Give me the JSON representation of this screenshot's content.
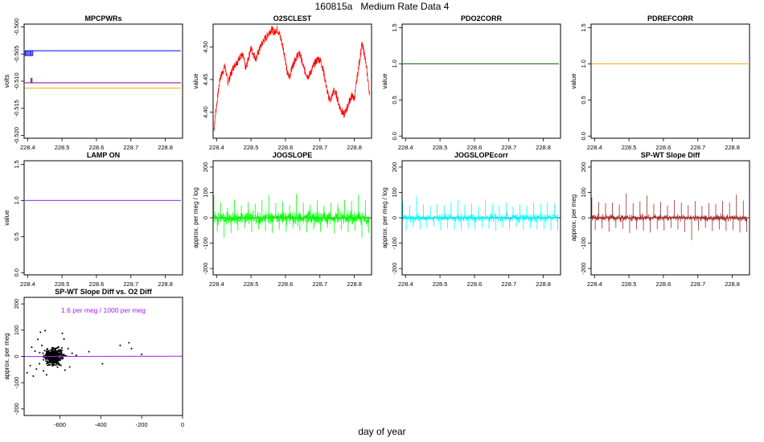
{
  "page": {
    "title": "160815a   Medium Rate Data 4",
    "xlabel": "day of year"
  },
  "chart_data": [
    {
      "id": "mpcpwrs",
      "type": "line",
      "title": "MPCPWRs",
      "xlabel": "",
      "ylabel": "volts",
      "xlim": [
        228.39,
        228.85
      ],
      "ylim": [
        -0.5205,
        -0.4995
      ],
      "xticks": [
        228.4,
        228.5,
        228.6,
        228.7,
        228.8
      ],
      "xtick_labels": [
        "228.4",
        "228.5",
        "228.6",
        "228.7",
        "228.8"
      ],
      "yticks": [
        -0.52,
        -0.515,
        -0.51,
        -0.505,
        -0.5
      ],
      "ytick_labels": [
        "-0.520",
        "-0.515",
        "-0.510",
        "-0.505",
        "-0.500"
      ],
      "series": [
        {
          "color": "#0000ff",
          "x": [
            228.392,
            228.845
          ],
          "y": [
            -0.5044,
            -0.5044
          ]
        },
        {
          "color": "#800080",
          "x": [
            228.392,
            228.845
          ],
          "y": [
            -0.5103,
            -0.5103
          ]
        },
        {
          "color": "#ffa500",
          "x": [
            228.392,
            228.845
          ],
          "y": [
            -0.5113,
            -0.5113
          ]
        }
      ]
    },
    {
      "id": "o2sclest",
      "type": "line",
      "title": "O2SCLEST",
      "xlabel": "",
      "ylabel": "value",
      "xlim": [
        228.39,
        228.85
      ],
      "ylim": [
        4.36,
        4.535
      ],
      "xticks": [
        228.4,
        228.5,
        228.6,
        228.7,
        228.8
      ],
      "xtick_labels": [
        "228.4",
        "228.5",
        "228.6",
        "228.7",
        "228.8"
      ],
      "yticks": [
        4.4,
        4.45,
        4.5
      ],
      "ytick_labels": [
        "4.40",
        "4.45",
        "4.50"
      ],
      "series": [
        {
          "color": "#ff0000",
          "x": [
            228.392,
            228.397,
            228.402,
            228.41,
            228.418,
            228.425,
            228.432,
            228.44,
            228.448,
            228.455,
            228.462,
            228.47,
            228.478,
            228.485,
            228.492,
            228.5,
            228.508,
            228.515,
            228.522,
            228.53,
            228.538,
            228.545,
            228.552,
            228.56,
            228.568,
            228.575,
            228.582,
            228.59,
            228.598,
            228.605,
            228.612,
            228.62,
            228.628,
            228.635,
            228.642,
            228.65,
            228.658,
            228.665,
            228.672,
            228.68,
            228.688,
            228.695,
            228.702,
            228.71,
            228.718,
            228.725,
            228.732,
            228.74,
            228.748,
            228.755,
            228.762,
            228.77,
            228.778,
            228.785,
            228.792,
            228.8,
            228.808,
            228.815,
            228.822,
            228.83,
            228.838,
            228.845
          ],
          "y": [
            4.372,
            4.398,
            4.418,
            4.452,
            4.462,
            4.471,
            4.445,
            4.456,
            4.468,
            4.475,
            4.478,
            4.488,
            4.484,
            4.466,
            4.482,
            4.498,
            4.488,
            4.482,
            4.493,
            4.503,
            4.511,
            4.515,
            4.522,
            4.527,
            4.522,
            4.528,
            4.521,
            4.506,
            4.487,
            4.46,
            4.454,
            4.47,
            4.481,
            4.487,
            4.49,
            4.473,
            4.461,
            4.455,
            4.459,
            4.47,
            4.477,
            4.482,
            4.479,
            4.464,
            4.441,
            4.423,
            4.419,
            4.433,
            4.427,
            4.412,
            4.403,
            4.396,
            4.405,
            4.416,
            4.425,
            4.421,
            4.452,
            4.478,
            4.504,
            4.488,
            4.456,
            4.425
          ]
        }
      ]
    },
    {
      "id": "pdo2corr",
      "type": "line",
      "title": "PDO2CORR",
      "xlabel": "",
      "ylabel": "value",
      "xlim": [
        228.39,
        228.85
      ],
      "ylim": [
        -0.03,
        1.55
      ],
      "xticks": [
        228.4,
        228.5,
        228.6,
        228.7,
        228.8
      ],
      "xtick_labels": [
        "228.4",
        "228.5",
        "228.6",
        "228.7",
        "228.8"
      ],
      "yticks": [
        0,
        0.5,
        1,
        1.5
      ],
      "ytick_labels": [
        "0.0",
        "0.5",
        "1.0",
        "1.5"
      ],
      "series": [
        {
          "color": "#006400",
          "x": [
            228.392,
            228.845
          ],
          "y": [
            1,
            1
          ]
        }
      ]
    },
    {
      "id": "pdrefcorr",
      "type": "line",
      "title": "PDREFCORR",
      "xlabel": "",
      "ylabel": "value",
      "xlim": [
        228.39,
        228.85
      ],
      "ylim": [
        -0.03,
        1.55
      ],
      "xticks": [
        228.4,
        228.5,
        228.6,
        228.7,
        228.8
      ],
      "xtick_labels": [
        "228.4",
        "228.5",
        "228.6",
        "228.7",
        "228.8"
      ],
      "yticks": [
        0,
        0.5,
        1,
        1.5
      ],
      "ytick_labels": [
        "0.0",
        "0.5",
        "1.0",
        "1.5"
      ],
      "series": [
        {
          "color": "#ffa500",
          "x": [
            228.392,
            228.845
          ],
          "y": [
            1,
            1
          ]
        }
      ]
    },
    {
      "id": "lampon",
      "type": "line",
      "title": "LAMP ON",
      "xlabel": "",
      "ylabel": "value",
      "xlim": [
        228.39,
        228.85
      ],
      "ylim": [
        -0.03,
        1.55
      ],
      "xticks": [
        228.4,
        228.5,
        228.6,
        228.7,
        228.8
      ],
      "xtick_labels": [
        "228.4",
        "228.5",
        "228.6",
        "228.7",
        "228.8"
      ],
      "yticks": [
        0,
        0.5,
        1,
        1.5
      ],
      "ytick_labels": [
        "0.0",
        "0.5",
        "1.0",
        "1.5"
      ],
      "series": [
        {
          "color": "#a020f0",
          "x": [
            228.392,
            228.845
          ],
          "y": [
            1,
            1
          ]
        }
      ]
    },
    {
      "id": "jogslope",
      "type": "line",
      "title": "JOGSLOPE",
      "xlabel": "",
      "ylabel": "approx. per meg / log",
      "xlim": [
        228.39,
        228.85
      ],
      "ylim": [
        -225,
        225
      ],
      "xticks": [
        228.4,
        228.5,
        228.6,
        228.7,
        228.8
      ],
      "xtick_labels": [
        "228.4",
        "228.5",
        "228.6",
        "228.7",
        "228.8"
      ],
      "yticks": [
        -200,
        -100,
        0,
        100,
        200
      ],
      "ytick_labels": [
        "-200",
        "-100",
        "0",
        "100",
        "200"
      ],
      "zero_line": true,
      "series": [
        {
          "color": "#00ff00",
          "x": [
            228.392,
            228.402,
            228.412,
            228.422,
            228.432,
            228.442,
            228.452,
            228.462,
            228.472,
            228.482,
            228.492,
            228.502,
            228.512,
            228.522,
            228.532,
            228.542,
            228.552,
            228.562,
            228.572,
            228.582,
            228.592,
            228.602,
            228.612,
            228.622,
            228.632,
            228.642,
            228.652,
            228.662,
            228.672,
            228.682,
            228.692,
            228.702,
            228.712,
            228.722,
            228.732,
            228.742,
            228.752,
            228.762,
            228.772,
            228.782,
            228.792,
            228.802,
            228.812,
            228.822,
            228.832,
            228.842
          ],
          "y": [
            88,
            -55,
            60,
            -78,
            40,
            -60,
            72,
            -50,
            48,
            -40,
            62,
            -58,
            55,
            -45,
            70,
            -52,
            90,
            -60,
            58,
            -48,
            65,
            -55,
            50,
            -42,
            95,
            -50,
            60,
            -58,
            52,
            -46,
            68,
            -54,
            48,
            -40,
            60,
            -62,
            55,
            -48,
            70,
            -58,
            66,
            -52,
            92,
            -78,
            70,
            -60
          ]
        }
      ]
    },
    {
      "id": "jogslopecorr",
      "type": "line",
      "title": "JOGSLOPEcorr",
      "xlabel": "",
      "ylabel": "approx. per meg / log",
      "xlim": [
        228.39,
        228.85
      ],
      "ylim": [
        -225,
        225
      ],
      "xticks": [
        228.4,
        228.5,
        228.6,
        228.7,
        228.8
      ],
      "xtick_labels": [
        "228.4",
        "228.5",
        "228.6",
        "228.7",
        "228.8"
      ],
      "yticks": [
        -200,
        -100,
        0,
        100,
        200
      ],
      "ytick_labels": [
        "-200",
        "-100",
        "0",
        "100",
        "200"
      ],
      "zero_line": true,
      "series": [
        {
          "color": "#00ffff",
          "x": [
            228.392,
            228.402,
            228.412,
            228.422,
            228.432,
            228.442,
            228.452,
            228.462,
            228.472,
            228.482,
            228.492,
            228.502,
            228.512,
            228.522,
            228.532,
            228.542,
            228.552,
            228.562,
            228.572,
            228.582,
            228.592,
            228.602,
            228.612,
            228.622,
            228.632,
            228.642,
            228.652,
            228.662,
            228.672,
            228.682,
            228.692,
            228.702,
            228.712,
            228.722,
            228.732,
            228.742,
            228.752,
            228.762,
            228.772,
            228.782,
            228.792,
            228.802,
            228.812,
            228.822,
            228.832,
            228.842
          ],
          "y": [
            65,
            -50,
            48,
            -38,
            85,
            -45,
            52,
            -40,
            45,
            -36,
            55,
            -48,
            50,
            -42,
            62,
            -46,
            70,
            -50,
            52,
            -40,
            58,
            -48,
            45,
            -38,
            72,
            -42,
            55,
            -50,
            48,
            -40,
            60,
            -46,
            44,
            -36,
            52,
            -48,
            50,
            -42,
            60,
            -46,
            56,
            -44,
            62,
            -50,
            58,
            -52
          ]
        }
      ]
    },
    {
      "id": "spwtslope",
      "type": "line",
      "title": "SP-WT Slope Diff",
      "xlabel": "",
      "ylabel": "approx. per meg",
      "xlim": [
        228.39,
        228.85
      ],
      "ylim": [
        -225,
        225
      ],
      "xticks": [
        228.4,
        228.5,
        228.6,
        228.7,
        228.8
      ],
      "xtick_labels": [
        "228.4",
        "228.5",
        "228.6",
        "228.7",
        "228.8"
      ],
      "yticks": [
        -200,
        -100,
        0,
        100,
        200
      ],
      "ytick_labels": [
        "-200",
        "-100",
        "0",
        "100",
        "200"
      ],
      "zero_line": true,
      "series": [
        {
          "color": "#a52a2a",
          "x": [
            228.392,
            228.402,
            228.412,
            228.422,
            228.432,
            228.442,
            228.452,
            228.462,
            228.472,
            228.482,
            228.492,
            228.502,
            228.512,
            228.522,
            228.532,
            228.542,
            228.552,
            228.562,
            228.572,
            228.582,
            228.592,
            228.602,
            228.612,
            228.622,
            228.632,
            228.642,
            228.652,
            228.662,
            228.672,
            228.682,
            228.692,
            228.702,
            228.712,
            228.722,
            228.732,
            228.742,
            228.752,
            228.762,
            228.772,
            228.782,
            228.792,
            228.802,
            228.812,
            228.822,
            228.832,
            228.842
          ],
          "y": [
            80,
            -48,
            62,
            -42,
            58,
            -55,
            60,
            -40,
            52,
            -44,
            96,
            -60,
            58,
            -46,
            64,
            -52,
            88,
            -58,
            55,
            -45,
            62,
            -50,
            48,
            -40,
            70,
            -46,
            60,
            -55,
            50,
            -88,
            66,
            -50,
            46,
            -40,
            58,
            -52,
            54,
            -46,
            66,
            -52,
            60,
            -48,
            92,
            -58,
            68,
            -56
          ]
        }
      ]
    },
    {
      "id": "scatter",
      "type": "scatter",
      "title": "SP-WT Slope Diff vs. O2 Diff",
      "xlabel": "",
      "ylabel": "approx. per meg",
      "xlim": [
        -775,
        0
      ],
      "ylim": [
        -225,
        225
      ],
      "xticks": [
        -600,
        -400,
        -200,
        0
      ],
      "xtick_labels": [
        "-600",
        "-400",
        "-200",
        "0"
      ],
      "yticks": [
        -200,
        -100,
        0,
        100,
        200
      ],
      "ytick_labels": [
        "-200",
        "-100",
        "0",
        "100",
        "200"
      ],
      "annotation": "1.6 per meg / 1000 per meg",
      "annotation_color": "#a020f0",
      "fit": {
        "color": "#a020f0",
        "slope": 0.0016,
        "intercept": 0.9
      },
      "cluster": {
        "x_center": -630,
        "x_spread": 30,
        "y_spread": 22,
        "count": 380
      },
      "points": [
        {
          "x": -760,
          "y": -62
        },
        {
          "x": -745,
          "y": -35
        },
        {
          "x": -738,
          "y": 35
        },
        {
          "x": -730,
          "y": -75
        },
        {
          "x": -722,
          "y": 20
        },
        {
          "x": -715,
          "y": -48
        },
        {
          "x": -708,
          "y": 65
        },
        {
          "x": -700,
          "y": -28
        },
        {
          "x": -695,
          "y": 92
        },
        {
          "x": -688,
          "y": 42
        },
        {
          "x": -680,
          "y": -55
        },
        {
          "x": -672,
          "y": 98
        },
        {
          "x": -665,
          "y": -70
        },
        {
          "x": -588,
          "y": 88
        },
        {
          "x": -580,
          "y": 66
        },
        {
          "x": -575,
          "y": -52
        },
        {
          "x": -560,
          "y": 30
        },
        {
          "x": -552,
          "y": -40
        },
        {
          "x": -540,
          "y": 12
        },
        {
          "x": -520,
          "y": 4
        },
        {
          "x": -458,
          "y": 18
        },
        {
          "x": -392,
          "y": -28
        },
        {
          "x": -305,
          "y": 42
        },
        {
          "x": -262,
          "y": 52
        },
        {
          "x": -250,
          "y": 30
        },
        {
          "x": -200,
          "y": 8
        }
      ]
    }
  ]
}
